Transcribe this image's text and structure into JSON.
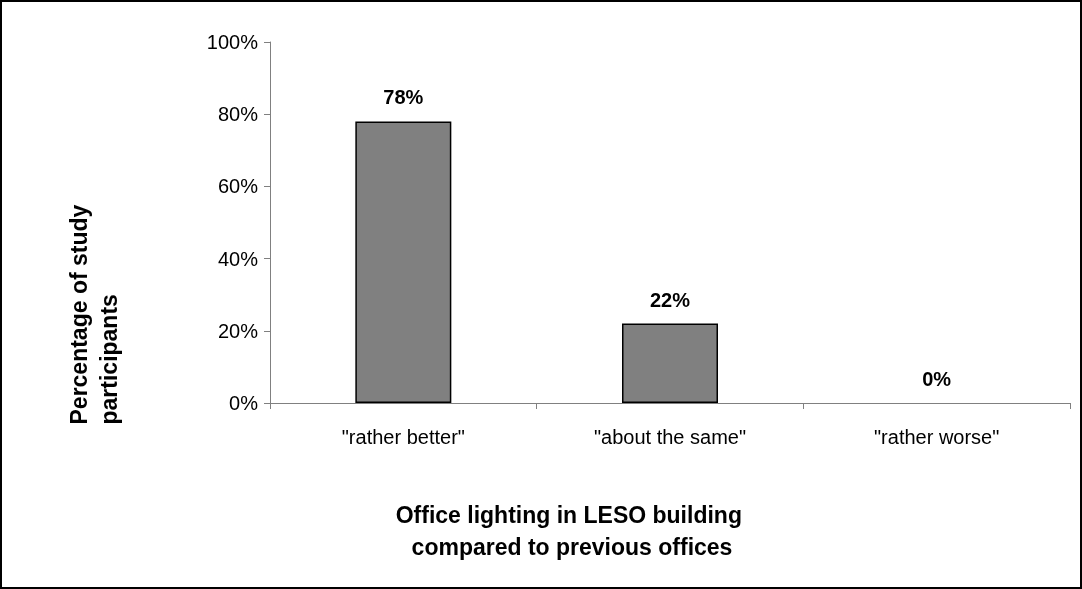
{
  "chart_data": {
    "type": "bar",
    "categories": [
      "\"rather better\"",
      "\"about the same\"",
      "\"rather worse\""
    ],
    "values": [
      78,
      22,
      0
    ],
    "value_labels": [
      "78%",
      "22%",
      "0%"
    ],
    "color": "#808080",
    "xlabel": "Office lighting in LESO building compared to previous offices",
    "ylabel": "Percentage of study participants",
    "ylim": [
      0,
      100
    ],
    "yticks": [
      {
        "value": 0,
        "label": "0%"
      },
      {
        "value": 20,
        "label": "20%"
      },
      {
        "value": 40,
        "label": "40%"
      },
      {
        "value": 60,
        "label": "60%"
      },
      {
        "value": 80,
        "label": "80%"
      },
      {
        "value": 100,
        "label": "100%"
      }
    ],
    "grid": false
  }
}
